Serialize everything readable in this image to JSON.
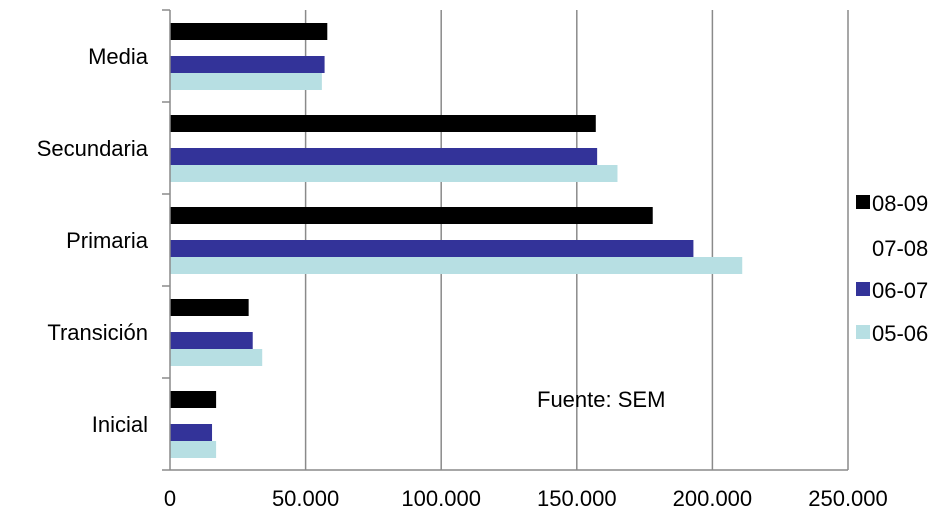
{
  "chart_data": {
    "type": "bar",
    "orientation": "horizontal",
    "categories": [
      "Media",
      "Secundaria",
      "Primaria",
      "Transición",
      "Inicial"
    ],
    "series": [
      {
        "name": "08-09",
        "color": "#000000",
        "values": [
          58000,
          157000,
          178000,
          29000,
          17000
        ]
      },
      {
        "name": "07-08",
        "color": "#ffffff",
        "values": [
          null,
          null,
          null,
          null,
          null
        ]
      },
      {
        "name": "06-07",
        "color": "#333399",
        "values": [
          57000,
          157500,
          193000,
          30500,
          15500
        ]
      },
      {
        "name": "05-06",
        "color": "#b7dfe3",
        "values": [
          56000,
          165000,
          211000,
          34000,
          17000
        ]
      }
    ],
    "xlim": [
      0,
      250000
    ],
    "xticks": [
      0,
      50000,
      100000,
      150000,
      200000,
      250000
    ],
    "xtick_labels": [
      "0",
      "50.000",
      "100.000",
      "150.000",
      "200.000",
      "250.000"
    ],
    "grid": "vertical",
    "legend_position": "right",
    "annotation": "Fuente:  SEM",
    "title": "",
    "xlabel": "",
    "ylabel": ""
  }
}
